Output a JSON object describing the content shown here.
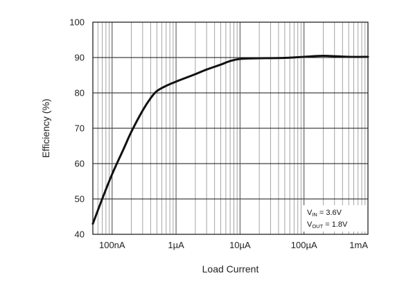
{
  "chart_data": {
    "type": "line",
    "title": "",
    "xlabel": "Load Current",
    "ylabel": "Efficiency (%)",
    "x_scale": "log",
    "x_unit": "A",
    "xlim": [
      5e-08,
      0.001
    ],
    "ylim": [
      40,
      100
    ],
    "x_ticks": [
      {
        "value": 1e-07,
        "label": "100nA"
      },
      {
        "value": 1e-06,
        "label": "1µA"
      },
      {
        "value": 1e-05,
        "label": "10µA"
      },
      {
        "value": 0.0001,
        "label": "100µA"
      },
      {
        "value": 0.001,
        "label": "1mA"
      }
    ],
    "y_ticks": [
      {
        "value": 40,
        "label": "40"
      },
      {
        "value": 50,
        "label": "50"
      },
      {
        "value": 60,
        "label": "60"
      },
      {
        "value": 70,
        "label": "70"
      },
      {
        "value": 80,
        "label": "80"
      },
      {
        "value": 90,
        "label": "90"
      },
      {
        "value": 100,
        "label": "100"
      }
    ],
    "grid": true,
    "series": [
      {
        "color": "#111111",
        "points": [
          [
            5e-08,
            43
          ],
          [
            7e-08,
            50
          ],
          [
            1e-07,
            57
          ],
          [
            1.5e-07,
            64
          ],
          [
            2e-07,
            69
          ],
          [
            3e-07,
            75
          ],
          [
            4e-07,
            78.5
          ],
          [
            5e-07,
            80.5
          ],
          [
            7e-07,
            82
          ],
          [
            1e-06,
            83.2
          ],
          [
            2e-06,
            85.3
          ],
          [
            3e-06,
            86.6
          ],
          [
            5e-06,
            88
          ],
          [
            7e-06,
            89
          ],
          [
            1e-05,
            89.6
          ],
          [
            2e-05,
            89.8
          ],
          [
            5e-05,
            89.9
          ],
          [
            0.0001,
            90.2
          ],
          [
            0.0002,
            90.5
          ],
          [
            0.0005,
            90.2
          ],
          [
            0.001,
            90.2
          ]
        ]
      }
    ],
    "annotation": {
      "line1_main": "V",
      "line1_sub": "IN",
      "line1_rest": " = 3.6V",
      "line2_main": "V",
      "line2_sub": "OUT",
      "line2_rest": " = 1.8V",
      "placement": "bottom-right"
    }
  }
}
